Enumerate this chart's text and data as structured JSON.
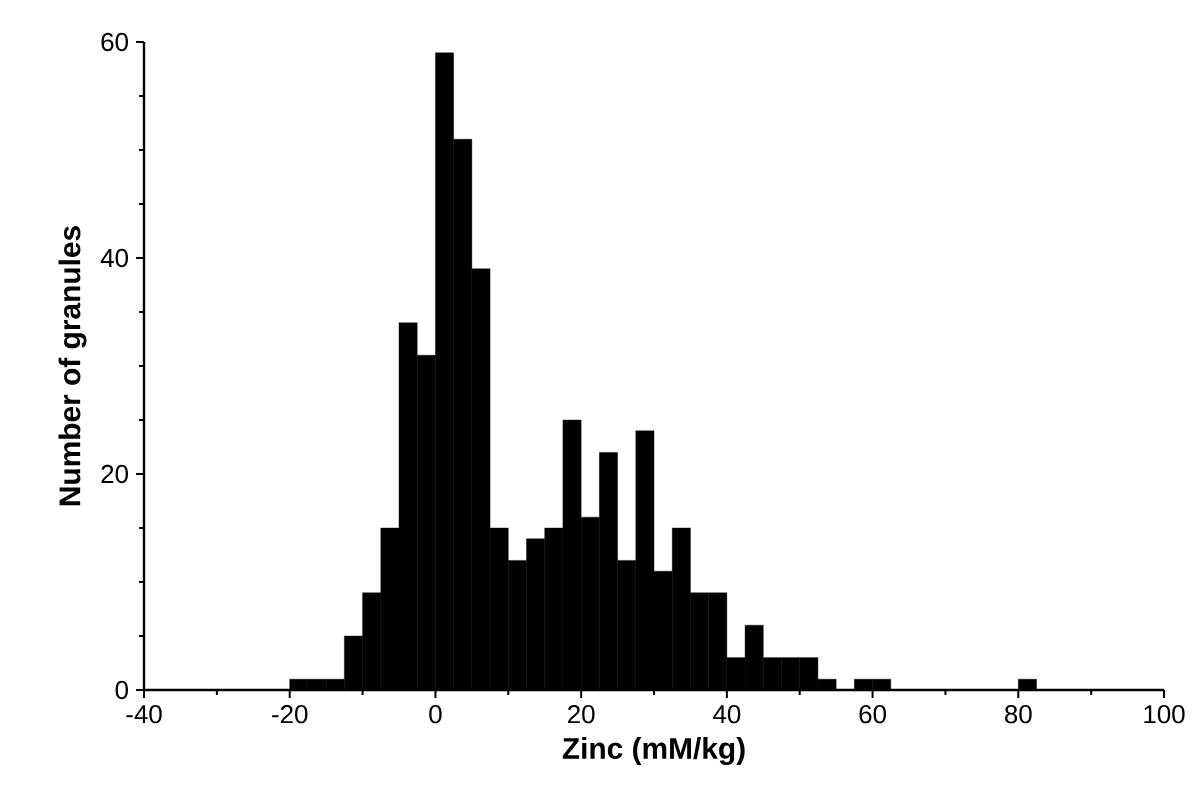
{
  "chart_data": {
    "type": "histogram",
    "xlabel": "Zinc (mM/kg)",
    "ylabel": "Number of granules",
    "color": "#000000",
    "bins": [
      -20,
      -17.5,
      -15,
      -12.5,
      -10,
      -7.5,
      -5,
      -2.5,
      0,
      2.5,
      5,
      7.5,
      10,
      12.5,
      15,
      17.5,
      20,
      22.5,
      25,
      27.5,
      30,
      32.5,
      35,
      37.5,
      40,
      42.5,
      45,
      47.5,
      50,
      52.5,
      55,
      57.5,
      60,
      62.5,
      65,
      67.5,
      70,
      72.5,
      75,
      77.5,
      80,
      82.5
    ],
    "values": [
      1,
      1,
      1,
      5,
      9,
      15,
      34,
      31,
      59,
      51,
      39,
      15,
      12,
      14,
      15,
      25,
      16,
      22,
      12,
      24,
      11,
      15,
      9,
      9,
      3,
      6,
      3,
      3,
      3,
      1,
      0,
      1,
      1,
      0,
      0,
      0,
      0,
      0,
      0,
      0,
      1
    ],
    "xlim": [
      -40,
      100
    ],
    "ylim": [
      0,
      60
    ],
    "xticks": [
      -40,
      -20,
      0,
      20,
      40,
      60,
      80,
      100
    ],
    "yticks": [
      0,
      20,
      40,
      60
    ],
    "grid": false
  }
}
